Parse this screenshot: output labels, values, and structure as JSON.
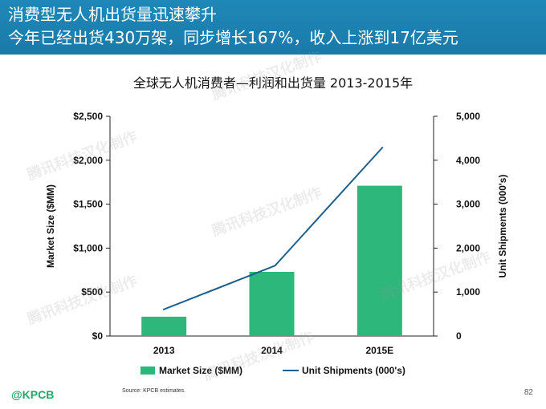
{
  "header": {
    "line1": "消费型无人机出货量迅速攀升",
    "line2": "今年已经出货430万架，同步增长167%，收入上涨到17亿美元"
  },
  "chart_data": {
    "type": "bar",
    "title": "全球无人机消费者—利润和出货量 2013-2015年",
    "categories": [
      "2013",
      "2014",
      "2015E"
    ],
    "series": [
      {
        "name": "Market Size ($MM)",
        "type": "bar",
        "axis": "left",
        "values": [
          220,
          730,
          1710
        ],
        "color": "#2db77b"
      },
      {
        "name": "Unit Shipments (000's)",
        "type": "line",
        "axis": "right",
        "values": [
          600,
          1600,
          4300
        ],
        "color": "#1c5f8c"
      }
    ],
    "ylabel": "Market Size ($MM)",
    "ylabel_right": "Unit Shipments (000's)",
    "ylim": [
      0,
      2500
    ],
    "ylim_right": [
      0,
      5000
    ],
    "yticks": [
      "$0",
      "$500",
      "$1,000",
      "$1,500",
      "$2,000",
      "$2,500"
    ],
    "yticks_right": [
      "0",
      "1,000",
      "2,000",
      "3,000",
      "4,000",
      "5,000"
    ],
    "legend_position": "bottom",
    "grid": false
  },
  "footer": {
    "logo": "@KPCB",
    "source": "Source: KPCB estimates.",
    "page": "82"
  },
  "watermark": "腾讯科技汉化制作"
}
